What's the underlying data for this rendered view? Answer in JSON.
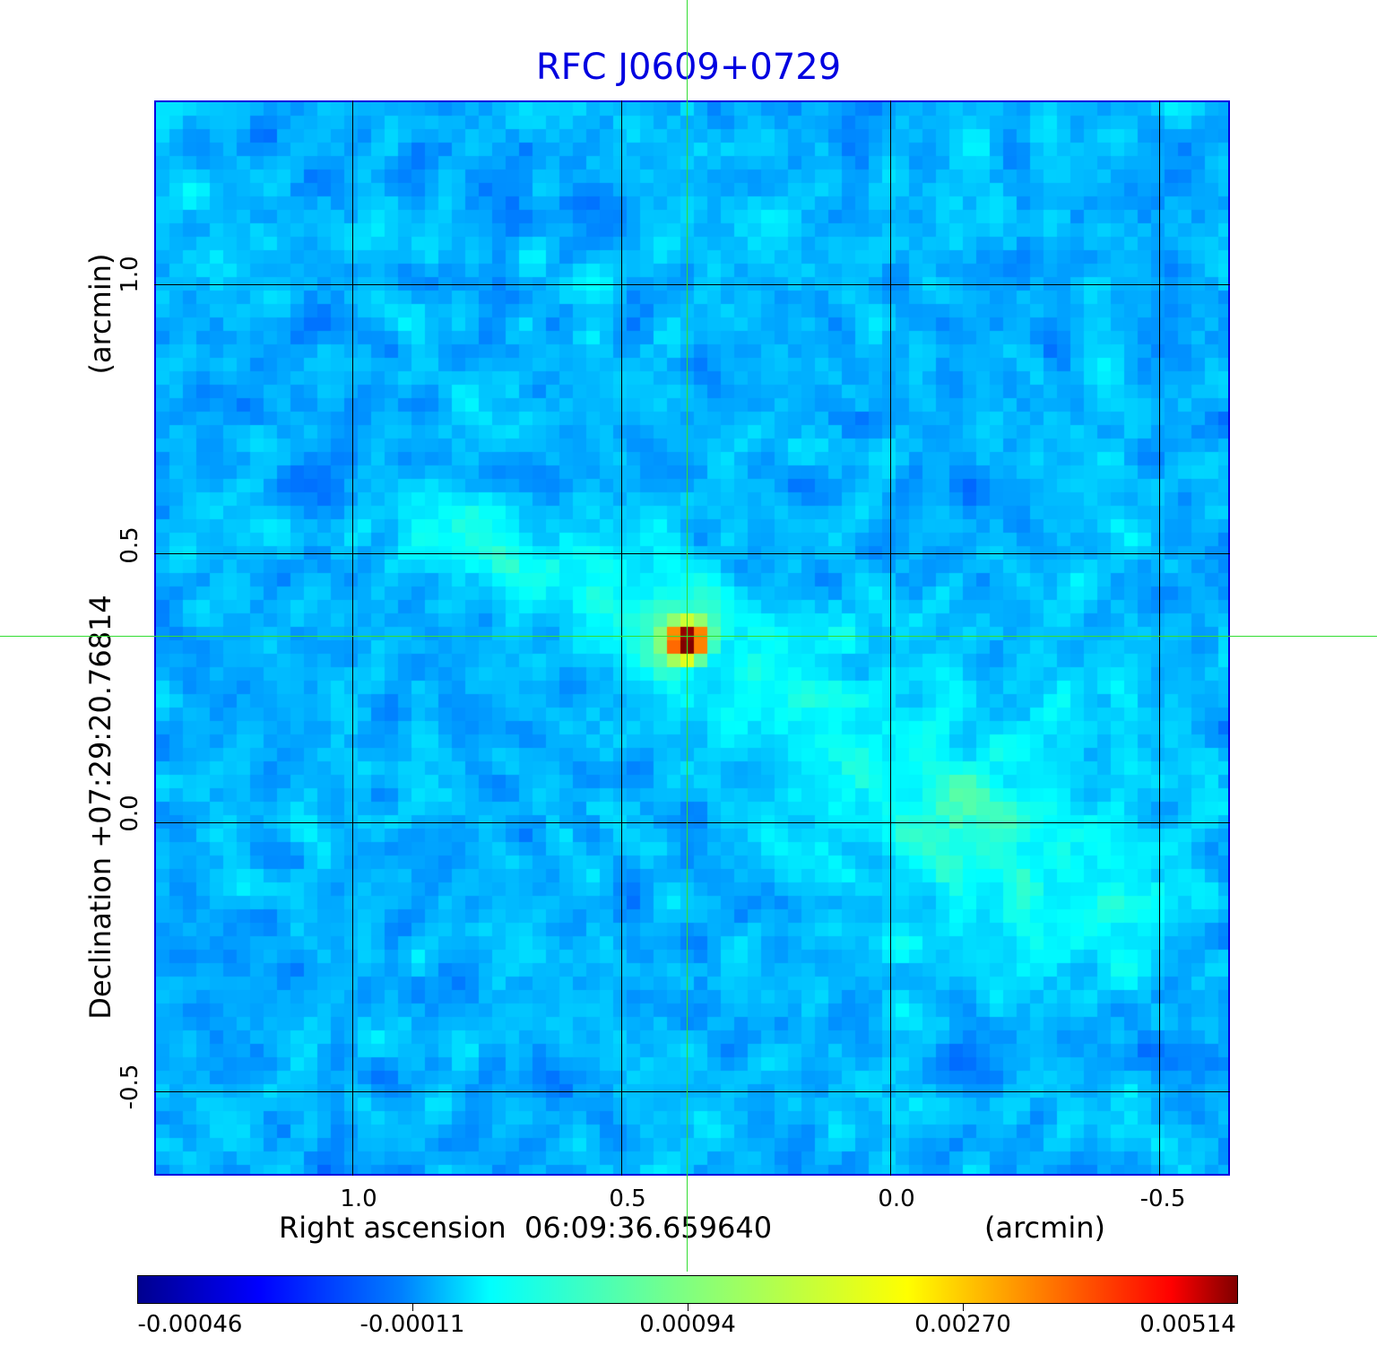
{
  "chart_data": {
    "type": "heatmap",
    "title": "RFC J0609+0729",
    "xlabel": "Right ascension  06:09:36.659640",
    "xunit": "(arcmin)",
    "ylabel": "Declination  +07:29:20.76814",
    "yunit": "(arcmin)",
    "xticks": [
      "1.0",
      "0.5",
      "0.0",
      "-0.5"
    ],
    "yticks": [
      "1.0",
      "0.5",
      "0.0",
      "-0.5"
    ],
    "xlim": [
      1.37,
      -0.63
    ],
    "ylim": [
      -0.66,
      1.34
    ],
    "grid": true,
    "colormap": "jet",
    "colorbar": {
      "ticks": [
        "-0.00046",
        "-0.00011",
        "0.00094",
        "0.00270",
        "0.00514"
      ],
      "range": [
        -0.00046,
        0.00514
      ],
      "placement": "bottom"
    },
    "peak": {
      "x_arcmin": 0.38,
      "y_arcmin": 0.34,
      "value": 0.00514
    },
    "crosshair": {
      "x_arcmin": 0.38,
      "y_arcmin": 0.34
    },
    "crosshair_color": "#33dd33",
    "title_color": "#0000e0"
  }
}
